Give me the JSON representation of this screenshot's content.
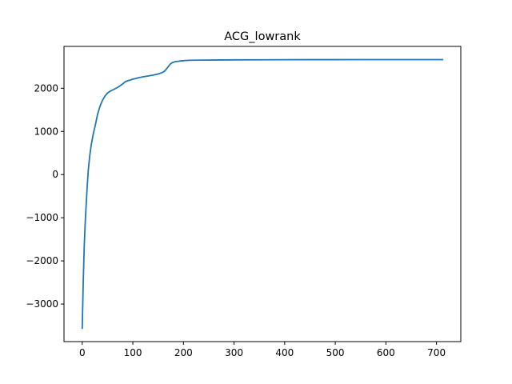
{
  "chart_data": {
    "type": "line",
    "title": "ACG_lowrank",
    "xlabel": "",
    "ylabel": "",
    "xlim": [
      -36,
      748
    ],
    "ylim": [
      -3870,
      2970
    ],
    "xticks": [
      0,
      100,
      200,
      300,
      400,
      500,
      600,
      700
    ],
    "yticks": [
      -3000,
      -2000,
      -1000,
      0,
      1000,
      2000
    ],
    "grid": false,
    "legend": "none",
    "series": [
      {
        "color": "#1f77b4",
        "x": [
          0,
          2,
          4,
          6,
          8,
          10,
          12,
          15,
          18,
          22,
          26,
          30,
          35,
          40,
          45,
          50,
          55,
          60,
          65,
          70,
          75,
          80,
          85,
          90,
          95,
          100,
          110,
          120,
          130,
          140,
          150,
          155,
          160,
          163,
          166,
          170,
          174,
          178,
          182,
          186,
          190,
          195,
          200,
          210,
          220,
          240,
          260,
          280,
          300,
          350,
          400,
          450,
          500,
          550,
          600,
          650,
          700,
          712
        ],
        "y": [
          -3560,
          -2500,
          -1650,
          -1100,
          -650,
          -250,
          100,
          450,
          700,
          950,
          1150,
          1380,
          1580,
          1720,
          1820,
          1890,
          1930,
          1960,
          1990,
          2020,
          2060,
          2100,
          2150,
          2175,
          2190,
          2210,
          2240,
          2265,
          2285,
          2305,
          2330,
          2350,
          2375,
          2400,
          2440,
          2500,
          2560,
          2595,
          2610,
          2620,
          2625,
          2635,
          2640,
          2648,
          2650,
          2652,
          2654,
          2656,
          2658,
          2660,
          2662,
          2663,
          2663,
          2664,
          2664,
          2664,
          2664,
          2664
        ]
      }
    ]
  }
}
